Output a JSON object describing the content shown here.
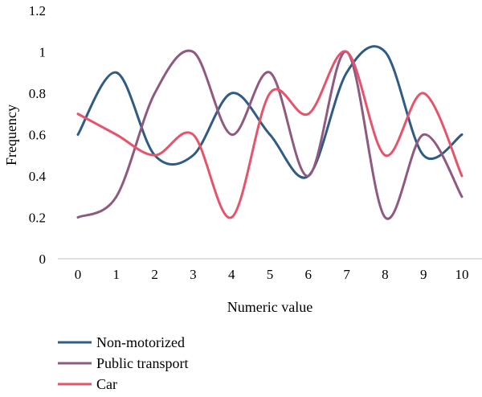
{
  "chart_data": {
    "type": "line",
    "title": "",
    "xlabel": "Numeric value",
    "ylabel": "Frequency",
    "x": [
      0,
      1,
      2,
      3,
      4,
      5,
      6,
      7,
      8,
      9,
      10
    ],
    "xlim": [
      0,
      10
    ],
    "ylim": [
      0,
      1.2
    ],
    "yticks": [
      "0",
      "0.2",
      "0.4",
      "0.6",
      "0.8",
      "1",
      "1.2"
    ],
    "xticks": [
      "0",
      "1",
      "2",
      "3",
      "4",
      "5",
      "6",
      "7",
      "8",
      "9",
      "10"
    ],
    "grid": false,
    "legend_position": "bottom-left",
    "smooth": true,
    "series": [
      {
        "name": "Non-motorized",
        "color": "#2f5b84",
        "values": [
          0.6,
          0.9,
          0.5,
          0.5,
          0.8,
          0.6,
          0.4,
          0.9,
          1.0,
          0.5,
          0.6
        ]
      },
      {
        "name": "Public transport",
        "color": "#8e5a80",
        "values": [
          0.2,
          0.3,
          0.8,
          1.0,
          0.6,
          0.9,
          0.4,
          1.0,
          0.2,
          0.6,
          0.3
        ]
      },
      {
        "name": "Car",
        "color": "#e5546b",
        "values": [
          0.7,
          0.6,
          0.5,
          0.6,
          0.2,
          0.8,
          0.7,
          1.0,
          0.5,
          0.8,
          0.4
        ]
      }
    ]
  }
}
